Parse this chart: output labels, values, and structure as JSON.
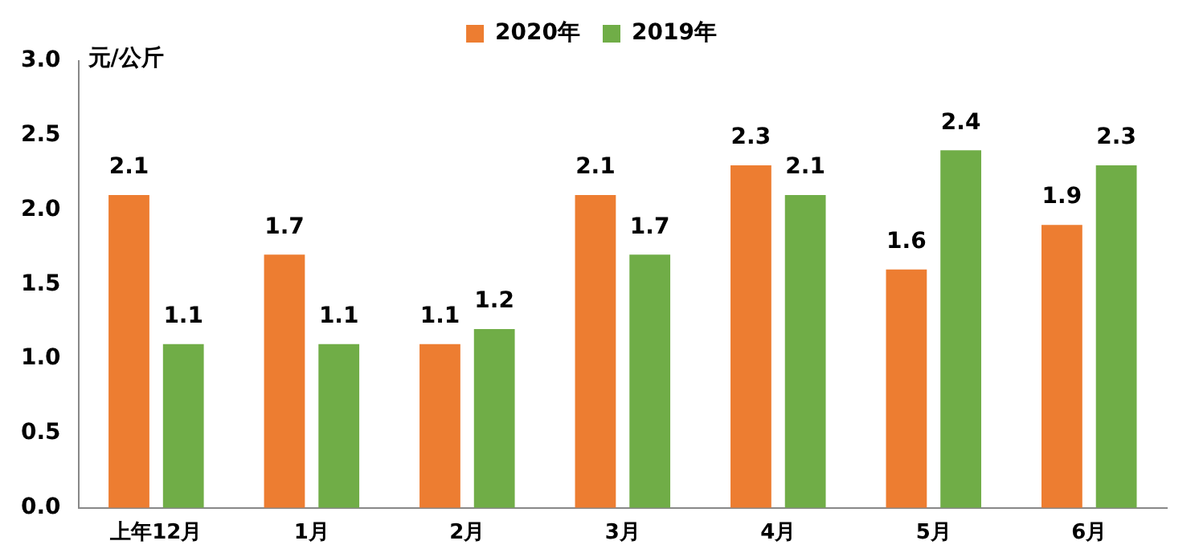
{
  "chart_data": {
    "type": "bar",
    "ylabel": "元/公斤",
    "categories": [
      "上年12月",
      "1月",
      "2月",
      "3月",
      "4月",
      "5月",
      "6月"
    ],
    "series": [
      {
        "name": "2020年",
        "color": "#ed7d31",
        "values": [
          2.1,
          1.7,
          1.1,
          2.1,
          2.3,
          1.6,
          1.9
        ]
      },
      {
        "name": "2019年",
        "color": "#70ad47",
        "values": [
          1.1,
          1.1,
          1.2,
          1.7,
          2.1,
          2.4,
          2.3
        ]
      }
    ],
    "ylim": [
      0,
      3
    ],
    "yticks": [
      {
        "value": 0,
        "label": "0.0"
      },
      {
        "value": 0.5,
        "label": "0.5"
      },
      {
        "value": 1,
        "label": "1.0"
      },
      {
        "value": 1.5,
        "label": "1.5"
      },
      {
        "value": 2,
        "label": "2.0"
      },
      {
        "value": 2.5,
        "label": "2.5"
      },
      {
        "value": 3,
        "label": "3.0"
      }
    ],
    "data_labels": true,
    "grid": false,
    "legend": "top"
  }
}
